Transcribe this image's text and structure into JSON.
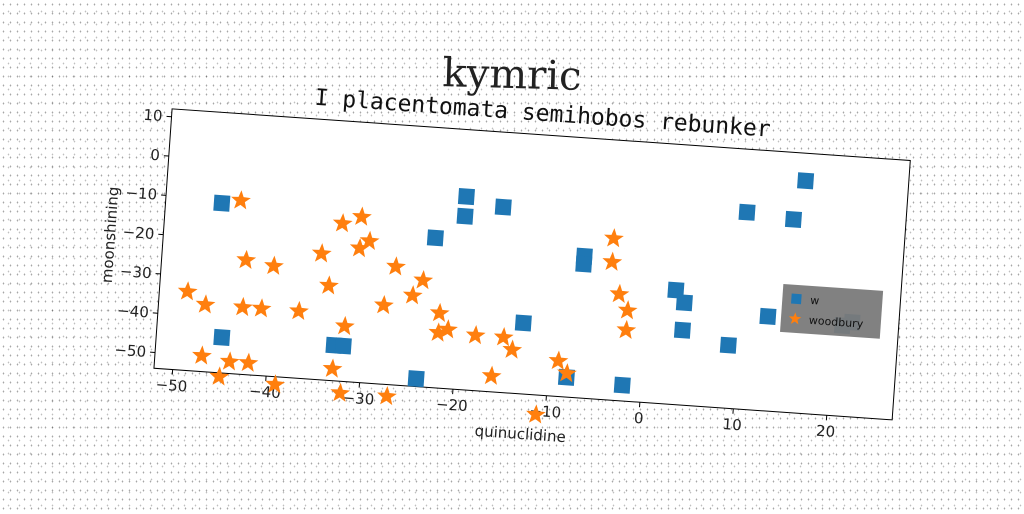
{
  "suptitle": "kymric",
  "chart_data": {
    "type": "scatter",
    "title": "I placentomata semihobos rebunker",
    "xlabel": "quinuclidine",
    "ylabel": "moonshining",
    "xlim": [
      -52,
      27
    ],
    "ylim": [
      -54,
      12
    ],
    "xticks": [
      "−50",
      "−40",
      "−30",
      "−20",
      "−10",
      "0",
      "10",
      "20"
    ],
    "xtick_values": [
      -50,
      -40,
      -30,
      -20,
      -10,
      0,
      10,
      20
    ],
    "yticks": [
      "−50",
      "−40",
      "−30",
      "−20",
      "−10",
      "0",
      "10"
    ],
    "ytick_values": [
      -50,
      -40,
      -30,
      -20,
      -10,
      0,
      10
    ],
    "grid": false,
    "legend_position": "right",
    "series": [
      {
        "name": "w",
        "marker": "square",
        "color": "#1f77b4",
        "points": [
          [
            -46,
            -11
          ],
          [
            -45,
            -45
          ],
          [
            -33,
            -45
          ],
          [
            -32,
            -45
          ],
          [
            -24,
            -52
          ],
          [
            -23,
            -16
          ],
          [
            -20,
            -5
          ],
          [
            -20,
            -10
          ],
          [
            -16,
            -7
          ],
          [
            -13,
            -36
          ],
          [
            -8,
            -49
          ],
          [
            -7,
            -18
          ],
          [
            -7,
            -20
          ],
          [
            -2,
            -50
          ],
          [
            3,
            -25
          ],
          [
            4,
            -28
          ],
          [
            4,
            -35
          ],
          [
            9,
            -38
          ],
          [
            10,
            -4
          ],
          [
            13,
            -30
          ],
          [
            15,
            -5
          ],
          [
            16,
            5
          ],
          [
            21,
            -31
          ],
          [
            22,
            -30
          ]
        ]
      },
      {
        "name": "woodbury",
        "marker": "star",
        "color": "#ff7f0e",
        "points": [
          [
            -49,
            -34
          ],
          [
            -47,
            -37
          ],
          [
            -47,
            -50
          ],
          [
            -45,
            -55
          ],
          [
            -44,
            -10
          ],
          [
            -44,
            -51
          ],
          [
            -43,
            -25
          ],
          [
            -43,
            -37
          ],
          [
            -42,
            -51
          ],
          [
            -41,
            -37
          ],
          [
            -40,
            -26
          ],
          [
            -39,
            -56
          ],
          [
            -37,
            -37
          ],
          [
            -35,
            -22
          ],
          [
            -34,
            -30
          ],
          [
            -33,
            -14
          ],
          [
            -33,
            -51
          ],
          [
            -32,
            -40
          ],
          [
            -32,
            -57
          ],
          [
            -31,
            -12
          ],
          [
            -31,
            -20
          ],
          [
            -30,
            -18
          ],
          [
            -28,
            -34
          ],
          [
            -27,
            -24
          ],
          [
            -27,
            -57
          ],
          [
            -25,
            -31
          ],
          [
            -24,
            -27
          ],
          [
            -22,
            -35
          ],
          [
            -22,
            -40
          ],
          [
            -21,
            -39
          ],
          [
            -18,
            -40
          ],
          [
            -16,
            -50
          ],
          [
            -15,
            -40
          ],
          [
            -14,
            -43
          ],
          [
            -11,
            -59
          ],
          [
            -9,
            -45
          ],
          [
            -8,
            -48
          ],
          [
            -4,
            -13
          ],
          [
            -4,
            -19
          ],
          [
            -3,
            -27
          ],
          [
            -2,
            -31
          ],
          [
            -2,
            -36
          ]
        ]
      }
    ]
  }
}
